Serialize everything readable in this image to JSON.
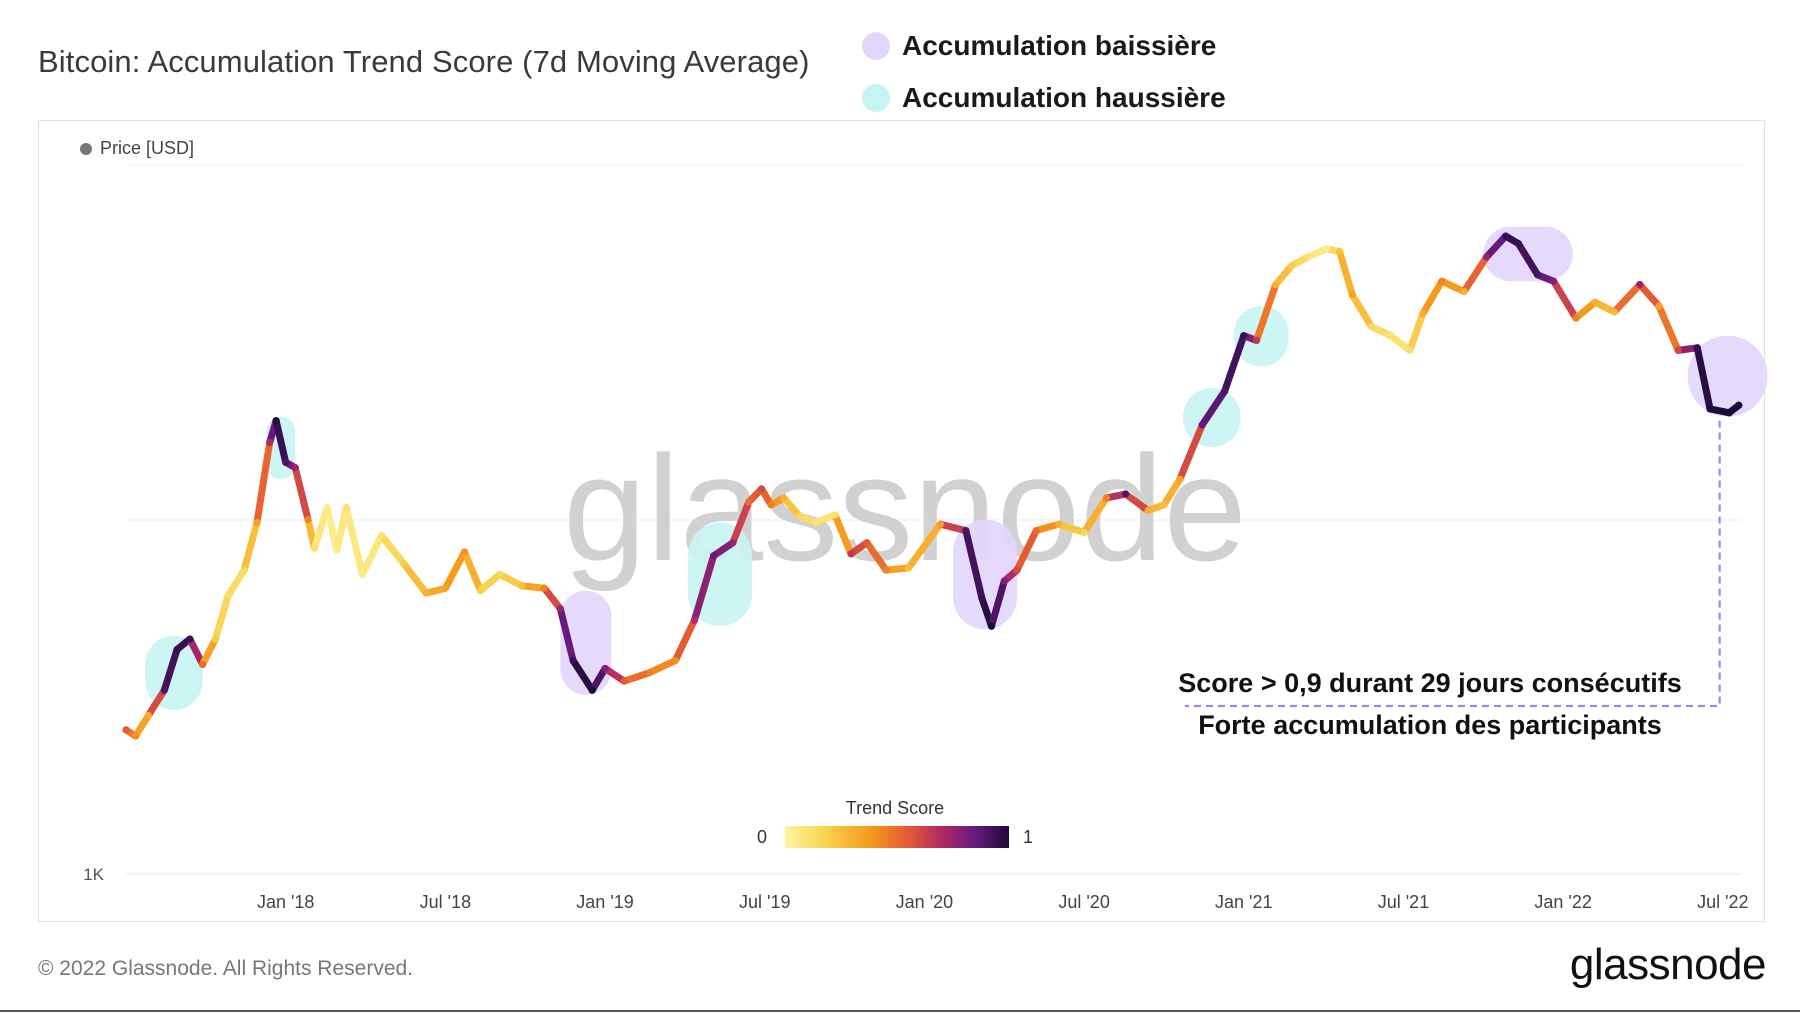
{
  "title": "Bitcoin: Accumulation Trend Score (7d Moving Average)",
  "legend": [
    {
      "label": "Accumulation baissière",
      "color": "#e2d6fb"
    },
    {
      "label": "Accumulation haussière",
      "color": "#c6f4f2"
    }
  ],
  "price_legend": "Price [USD]",
  "trend_score": {
    "title": "Trend Score",
    "min": "0",
    "max": "1"
  },
  "annotation": {
    "line1": "Score > 0,9 durant 29 jours consécutifs",
    "line2": "Forte accumulation des participants"
  },
  "watermark": "glassnode",
  "footer": {
    "copyright": "© 2022 Glassnode. All Rights Reserved.",
    "logo": "glassnode"
  },
  "colors": {
    "bearish_zone": "#e2d6fb",
    "bullish_zone": "#c6f4f2",
    "annotation_line": "#a682e8"
  },
  "chart_data": {
    "type": "line",
    "title": "Bitcoin: Accumulation Trend Score (7d Moving Average)",
    "ylabel": "Price [USD]",
    "yscale": "log",
    "ylim": [
      1000,
      100000
    ],
    "y_tick_labels": [
      {
        "value": 1000,
        "label": "1K"
      }
    ],
    "xlim": [
      2017.5,
      2022.56
    ],
    "x_ticks": [
      {
        "value": 2018.0,
        "label": "Jan '18"
      },
      {
        "value": 2018.5,
        "label": "Jul '18"
      },
      {
        "value": 2019.0,
        "label": "Jan '19"
      },
      {
        "value": 2019.5,
        "label": "Jul '19"
      },
      {
        "value": 2020.0,
        "label": "Jan '20"
      },
      {
        "value": 2020.5,
        "label": "Jul '20"
      },
      {
        "value": 2021.0,
        "label": "Jan '21"
      },
      {
        "value": 2021.5,
        "label": "Jul '21"
      },
      {
        "value": 2022.0,
        "label": "Jan '22"
      },
      {
        "value": 2022.5,
        "label": "Jul '22"
      }
    ],
    "series": [
      {
        "name": "Price [USD]",
        "color_by": "Trend Score",
        "points": [
          {
            "t": 2017.5,
            "price": 2550,
            "score": 0.55
          },
          {
            "t": 2017.53,
            "price": 2450,
            "score": 0.4
          },
          {
            "t": 2017.57,
            "price": 2800,
            "score": 0.3
          },
          {
            "t": 2017.62,
            "price": 3300,
            "score": 0.9
          },
          {
            "t": 2017.66,
            "price": 4300,
            "score": 0.95
          },
          {
            "t": 2017.7,
            "price": 4600,
            "score": 0.95
          },
          {
            "t": 2017.74,
            "price": 3900,
            "score": 0.5
          },
          {
            "t": 2017.78,
            "price": 4600,
            "score": 0.2
          },
          {
            "t": 2017.82,
            "price": 6100,
            "score": 0.12
          },
          {
            "t": 2017.87,
            "price": 7200,
            "score": 0.15
          },
          {
            "t": 2017.91,
            "price": 9800,
            "score": 0.35
          },
          {
            "t": 2017.95,
            "price": 16500,
            "score": 0.7
          },
          {
            "t": 2017.97,
            "price": 19000,
            "score": 1.0
          },
          {
            "t": 2018.0,
            "price": 14500,
            "score": 0.9
          },
          {
            "t": 2018.03,
            "price": 14000,
            "score": 0.75
          },
          {
            "t": 2018.07,
            "price": 10000,
            "score": 0.45
          },
          {
            "t": 2018.09,
            "price": 8300,
            "score": 0.1
          },
          {
            "t": 2018.13,
            "price": 10800,
            "score": 0.05
          },
          {
            "t": 2018.16,
            "price": 8200,
            "score": 0.05
          },
          {
            "t": 2018.19,
            "price": 10800,
            "score": 0.1
          },
          {
            "t": 2018.24,
            "price": 7000,
            "score": 0.05
          },
          {
            "t": 2018.3,
            "price": 9000,
            "score": 0.1
          },
          {
            "t": 2018.37,
            "price": 7500,
            "score": 0.2
          },
          {
            "t": 2018.44,
            "price": 6200,
            "score": 0.3
          },
          {
            "t": 2018.5,
            "price": 6400,
            "score": 0.35
          },
          {
            "t": 2018.56,
            "price": 8100,
            "score": 0.4
          },
          {
            "t": 2018.61,
            "price": 6300,
            "score": 0.2
          },
          {
            "t": 2018.67,
            "price": 7000,
            "score": 0.15
          },
          {
            "t": 2018.74,
            "price": 6500,
            "score": 0.25
          },
          {
            "t": 2018.81,
            "price": 6400,
            "score": 0.45
          },
          {
            "t": 2018.86,
            "price": 5600,
            "score": 0.75
          },
          {
            "t": 2018.9,
            "price": 4000,
            "score": 0.95
          },
          {
            "t": 2018.96,
            "price": 3300,
            "score": 1.0
          },
          {
            "t": 2019.0,
            "price": 3800,
            "score": 0.8
          },
          {
            "t": 2019.06,
            "price": 3500,
            "score": 0.55
          },
          {
            "t": 2019.14,
            "price": 3700,
            "score": 0.45
          },
          {
            "t": 2019.22,
            "price": 4000,
            "score": 0.4
          },
          {
            "t": 2019.28,
            "price": 5200,
            "score": 0.7
          },
          {
            "t": 2019.34,
            "price": 7900,
            "score": 0.85
          },
          {
            "t": 2019.4,
            "price": 8600,
            "score": 0.75
          },
          {
            "t": 2019.45,
            "price": 11200,
            "score": 0.5
          },
          {
            "t": 2019.49,
            "price": 12200,
            "score": 0.6
          },
          {
            "t": 2019.52,
            "price": 11000,
            "score": 0.45
          },
          {
            "t": 2019.56,
            "price": 11500,
            "score": 0.3
          },
          {
            "t": 2019.61,
            "price": 10200,
            "score": 0.15
          },
          {
            "t": 2019.66,
            "price": 9800,
            "score": 0.1
          },
          {
            "t": 2019.72,
            "price": 10300,
            "score": 0.1
          },
          {
            "t": 2019.77,
            "price": 8000,
            "score": 0.65
          },
          {
            "t": 2019.82,
            "price": 8600,
            "score": 0.55
          },
          {
            "t": 2019.88,
            "price": 7200,
            "score": 0.45
          },
          {
            "t": 2019.95,
            "price": 7300,
            "score": 0.25
          },
          {
            "t": 2020.05,
            "price": 9700,
            "score": 0.35
          },
          {
            "t": 2020.13,
            "price": 9300,
            "score": 0.9
          },
          {
            "t": 2020.18,
            "price": 6000,
            "score": 0.95
          },
          {
            "t": 2020.21,
            "price": 5000,
            "score": 1.0
          },
          {
            "t": 2020.25,
            "price": 6700,
            "score": 0.8
          },
          {
            "t": 2020.29,
            "price": 7200,
            "score": 0.6
          },
          {
            "t": 2020.35,
            "price": 9300,
            "score": 0.5
          },
          {
            "t": 2020.42,
            "price": 9700,
            "score": 0.3
          },
          {
            "t": 2020.5,
            "price": 9200,
            "score": 0.15
          },
          {
            "t": 2020.57,
            "price": 11500,
            "score": 0.45
          },
          {
            "t": 2020.63,
            "price": 11800,
            "score": 0.9
          },
          {
            "t": 2020.7,
            "price": 10600,
            "score": 0.3
          },
          {
            "t": 2020.75,
            "price": 11000,
            "score": 0.25
          },
          {
            "t": 2020.8,
            "price": 13000,
            "score": 0.35
          },
          {
            "t": 2020.87,
            "price": 18500,
            "score": 0.85
          },
          {
            "t": 2020.94,
            "price": 23000,
            "score": 0.9
          },
          {
            "t": 2021.0,
            "price": 33000,
            "score": 0.95
          },
          {
            "t": 2021.04,
            "price": 32000,
            "score": 0.65
          },
          {
            "t": 2021.1,
            "price": 46000,
            "score": 0.3
          },
          {
            "t": 2021.15,
            "price": 52000,
            "score": 0.2
          },
          {
            "t": 2021.2,
            "price": 55000,
            "score": 0.1
          },
          {
            "t": 2021.26,
            "price": 58000,
            "score": 0.05
          },
          {
            "t": 2021.3,
            "price": 57000,
            "score": 0.25
          },
          {
            "t": 2021.34,
            "price": 43000,
            "score": 0.35
          },
          {
            "t": 2021.4,
            "price": 35000,
            "score": 0.15
          },
          {
            "t": 2021.46,
            "price": 33000,
            "score": 0.1
          },
          {
            "t": 2021.52,
            "price": 30000,
            "score": 0.1
          },
          {
            "t": 2021.56,
            "price": 38000,
            "score": 0.3
          },
          {
            "t": 2021.62,
            "price": 47000,
            "score": 0.45
          },
          {
            "t": 2021.69,
            "price": 44000,
            "score": 0.3
          },
          {
            "t": 2021.76,
            "price": 55000,
            "score": 0.75
          },
          {
            "t": 2021.82,
            "price": 63000,
            "score": 0.95
          },
          {
            "t": 2021.86,
            "price": 60000,
            "score": 0.95
          },
          {
            "t": 2021.92,
            "price": 49000,
            "score": 0.9
          },
          {
            "t": 2021.97,
            "price": 47000,
            "score": 0.8
          },
          {
            "t": 2022.04,
            "price": 37000,
            "score": 0.45
          },
          {
            "t": 2022.1,
            "price": 41000,
            "score": 0.3
          },
          {
            "t": 2022.16,
            "price": 38500,
            "score": 0.25
          },
          {
            "t": 2022.24,
            "price": 46000,
            "score": 0.75
          },
          {
            "t": 2022.3,
            "price": 40000,
            "score": 0.35
          },
          {
            "t": 2022.36,
            "price": 30000,
            "score": 0.6
          },
          {
            "t": 2022.42,
            "price": 30500,
            "score": 0.95
          },
          {
            "t": 2022.46,
            "price": 20500,
            "score": 1.0
          },
          {
            "t": 2022.52,
            "price": 20000,
            "score": 1.0
          },
          {
            "t": 2022.55,
            "price": 21000,
            "score": 1.0
          }
        ]
      }
    ],
    "zones": [
      {
        "type": "haussiere",
        "t_start": 2017.56,
        "t_end": 2017.74,
        "price_low": 2900,
        "price_high": 4700
      },
      {
        "type": "haussiere",
        "t_start": 2017.94,
        "t_end": 2018.03,
        "price_low": 13000,
        "price_high": 19500
      },
      {
        "type": "baissiere",
        "t_start": 2018.86,
        "t_end": 2019.02,
        "price_low": 3200,
        "price_high": 6300
      },
      {
        "type": "haussiere",
        "t_start": 2019.26,
        "t_end": 2019.46,
        "price_low": 5000,
        "price_high": 9800
      },
      {
        "type": "baissiere",
        "t_start": 2020.09,
        "t_end": 2020.29,
        "price_low": 4900,
        "price_high": 10000
      },
      {
        "type": "haussiere",
        "t_start": 2020.81,
        "t_end": 2020.99,
        "price_low": 16000,
        "price_high": 23500
      },
      {
        "type": "haussiere",
        "t_start": 2020.97,
        "t_end": 2021.14,
        "price_low": 27000,
        "price_high": 40000
      },
      {
        "type": "baissiere",
        "t_start": 2021.75,
        "t_end": 2022.03,
        "price_low": 47000,
        "price_high": 67000
      },
      {
        "type": "baissiere",
        "t_start": 2022.39,
        "t_end": 2022.64,
        "price_low": 19500,
        "price_high": 33000
      }
    ],
    "annotation_anchor": {
      "t": 2022.49,
      "price": 19500
    }
  }
}
